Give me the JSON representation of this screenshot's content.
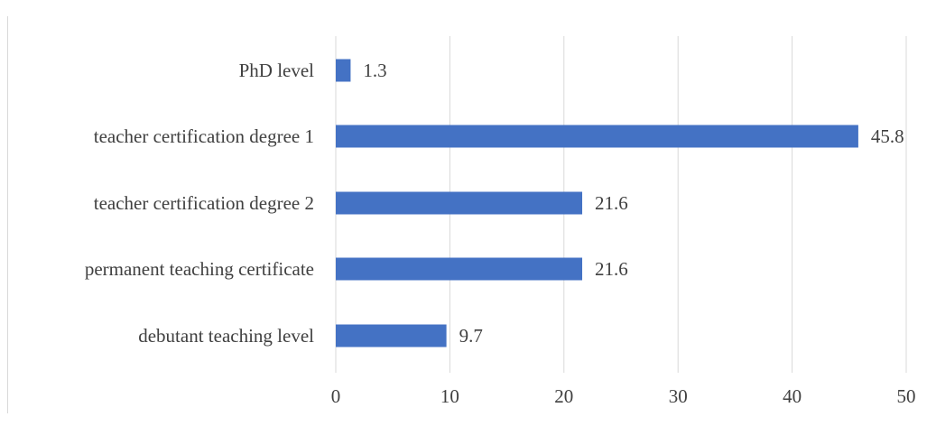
{
  "chart_data": {
    "type": "bar",
    "orientation": "horizontal",
    "categories": [
      "PhD level",
      "teacher certification degree 1",
      "teacher certification degree 2",
      "permanent teaching certificate",
      "debutant teaching level"
    ],
    "values": [
      1.3,
      45.8,
      21.6,
      21.6,
      9.7
    ],
    "data_labels": [
      "1.3",
      "45.8",
      "21.6",
      "21.6",
      "9.7"
    ],
    "xlim": [
      0,
      50
    ],
    "x_ticks": [
      0,
      10,
      20,
      30,
      40,
      50
    ],
    "x_tick_labels": [
      "0",
      "10",
      "20",
      "30",
      "40",
      "50"
    ],
    "title": "",
    "xlabel": "",
    "ylabel": "",
    "grid": "vertical",
    "legend": "none",
    "colors": {
      "bar": "#4472c4",
      "grid": "#d9d9d9",
      "text": "#404040"
    }
  }
}
